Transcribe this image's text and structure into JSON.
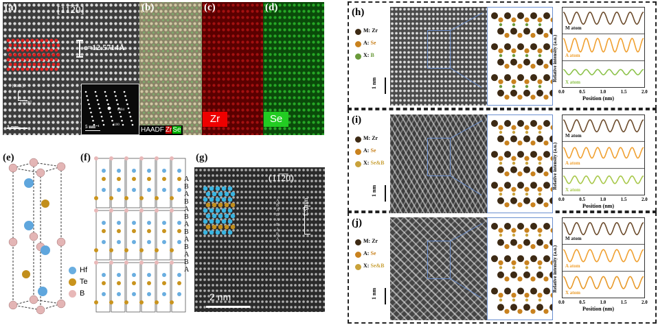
{
  "panels": {
    "a": {
      "label": "(a)",
      "zone_axis": "[11̅2̅0]",
      "c_param": "c=12.5714Å",
      "dir_top": "[0001]",
      "dir_side": "[1̅1̅00]",
      "scalebar": "1 nm",
      "fft_scalebar": "5 nm⁻¹",
      "fft_spot_top": "0004",
      "fft_spot_bottom": "1100"
    },
    "b": {
      "label": "(b)",
      "legend_haadf": "HAADF",
      "legend_zr": "Zr",
      "legend_se": "Se"
    },
    "c": {
      "label": "(c)",
      "element": "Zr"
    },
    "d": {
      "label": "(d)",
      "element": "Se"
    },
    "e": {
      "label": "(e)"
    },
    "f": {
      "label": "(f)",
      "stacking": [
        "A",
        "B",
        "A",
        "B",
        "A",
        "B",
        "A",
        "B",
        "A",
        "B",
        "A",
        "B",
        "A"
      ],
      "legend": [
        {
          "name": "Hf",
          "color": "#6aaee0"
        },
        {
          "name": "Te",
          "color": "#c9941e"
        },
        {
          "name": "B",
          "color": "#e8b8b8"
        }
      ]
    },
    "g": {
      "label": "(g)",
      "zone_axis": "(11̅2̅0)",
      "scalebar": "2 nm",
      "spacing": "1.31nm",
      "stacking": [
        "A",
        "B",
        "A",
        "B",
        "A",
        "B",
        "A",
        "B",
        "A"
      ]
    },
    "h": {
      "label": "(h)",
      "scalebar": "1 nm",
      "legend": [
        {
          "text": "M: Zr",
          "color": "#3d2a14"
        },
        {
          "text": "A: Se",
          "color": "#c9821e"
        },
        {
          "text": "X: B",
          "color": "#6a9a3a"
        }
      ]
    },
    "i": {
      "label": "(i)",
      "scalebar": "1 nm",
      "legend": [
        {
          "text": "M: Zr",
          "color": "#3d2a14"
        },
        {
          "text": "A: Se",
          "color": "#c9821e"
        },
        {
          "text": "X: Se&B",
          "color": "#c9a23a"
        }
      ]
    },
    "j": {
      "label": "(j)",
      "scalebar": "1 nm",
      "legend": [
        {
          "text": "M: Zr",
          "color": "#3d2a14"
        },
        {
          "text": "A: Se",
          "color": "#c9821e"
        },
        {
          "text": "X: Se&B",
          "color": "#c9a23a"
        }
      ]
    }
  },
  "chart_data": [
    {
      "type": "line",
      "panel": "h",
      "xlabel": "Position (nm)",
      "ylabel": "Relative intensity (a.u.)",
      "xlim": [
        0.0,
        2.0
      ],
      "xticks": [
        "0.0",
        "0.5",
        "1.0",
        "1.5",
        "2.0"
      ],
      "series": [
        {
          "name": "M atom",
          "color": "#6b4a2a",
          "peaks": 6,
          "amp": 0.8
        },
        {
          "name": "A atom",
          "color": "#f0a030",
          "peaks": 7,
          "amp": 0.9
        },
        {
          "name": "X atom",
          "color": "#8cc24a",
          "peaks": 7,
          "amp": 0.35
        }
      ]
    },
    {
      "type": "line",
      "panel": "i",
      "xlabel": "Position (nm)",
      "ylabel": "Relative intensity (a.u.)",
      "xlim": [
        0.0,
        2.0
      ],
      "xticks": [
        "0.0",
        "0.5",
        "1.0",
        "1.5",
        "2.0"
      ],
      "series": [
        {
          "name": "M atom",
          "color": "#6b4a2a",
          "peaks": 6,
          "amp": 0.8
        },
        {
          "name": "A atom",
          "color": "#f0a030",
          "peaks": 7,
          "amp": 0.7
        },
        {
          "name": "X atom",
          "color": "#a8c84a",
          "peaks": 7,
          "amp": 0.5
        }
      ]
    },
    {
      "type": "line",
      "panel": "j",
      "xlabel": "Position (nm)",
      "ylabel": "Relative intensity (a.u.)",
      "xlim": [
        0.0,
        2.0
      ],
      "xticks": [
        "0.0",
        "0.5",
        "1.0",
        "1.5",
        "2.0"
      ],
      "series": [
        {
          "name": "M atom",
          "color": "#6b4a2a",
          "peaks": 6,
          "amp": 0.8
        },
        {
          "name": "A atom",
          "color": "#f0a030",
          "peaks": 6,
          "amp": 0.8
        },
        {
          "name": "X atom",
          "color": "#e89a2a",
          "peaks": 6,
          "amp": 0.8
        }
      ]
    }
  ]
}
